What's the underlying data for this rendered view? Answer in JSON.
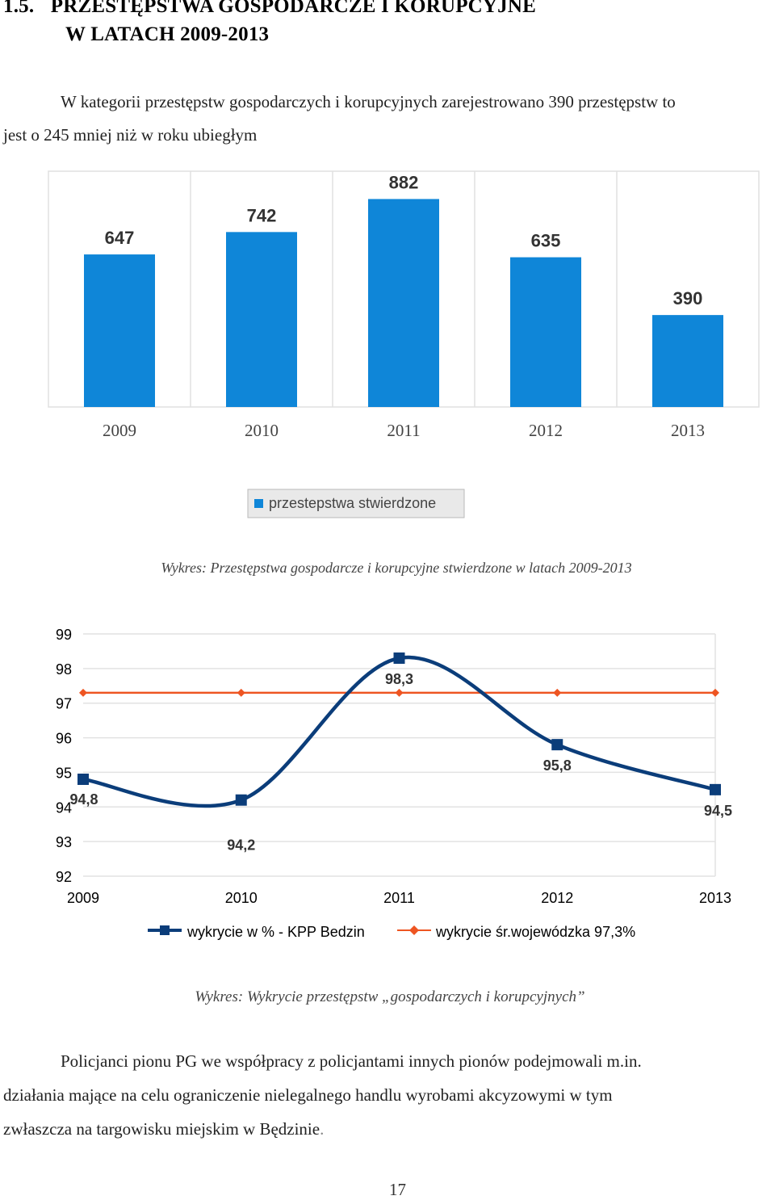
{
  "section": {
    "number": "1.5.",
    "title_line1": "PRZESTĘPSTWA GOSPODARCZE I KORUPCYJNE",
    "title_line2": "W LATACH 2009-2013"
  },
  "intro": {
    "line1": "W kategorii przestępstw gospodarczych i korupcyjnych zarejestrowano 390 przestępstw to",
    "line2": "jest  o 245 mniej niż w roku ubiegłym"
  },
  "chart_data": [
    {
      "type": "bar",
      "categories": [
        "2009",
        "2010",
        "2011",
        "2012",
        "2013"
      ],
      "series": [
        {
          "name": "przestepstwa stwierdzone",
          "values": [
            647,
            742,
            882,
            635,
            390
          ]
        }
      ],
      "data_labels": [
        "647",
        "742",
        "882",
        "635",
        "390"
      ],
      "ylim": [
        0,
        1000
      ],
      "grid": "vertical",
      "legend": "bottom-center",
      "color": "#0f86d8",
      "caption": "Wykres: Przestępstwa gospodarcze i korupcyjne stwierdzone w latach 2009-2013"
    },
    {
      "type": "line",
      "x": [
        "2009",
        "2010",
        "2011",
        "2012",
        "2013"
      ],
      "yticks": [
        "99",
        "98",
        "97",
        "96",
        "95",
        "94",
        "93",
        "92"
      ],
      "ylim": [
        92,
        99
      ],
      "grid": "horizontal",
      "legend": "bottom-center",
      "series": [
        {
          "name": "wykrycie w % - KPP Bedzin",
          "values": [
            94.8,
            94.2,
            98.3,
            95.8,
            94.5
          ],
          "labels": [
            "94,8",
            "94,2",
            "98,3",
            "95,8",
            "94,5"
          ],
          "color": "#0b3d7a",
          "marker": "square",
          "smooth": true
        },
        {
          "name": "wykrycie śr.wojewódzka 97,3%",
          "values": [
            97.3,
            97.3,
            97.3,
            97.3,
            97.3
          ],
          "color": "#ee5522",
          "marker": "diamond",
          "smooth": false
        }
      ],
      "caption": "Wykres: Wykrycie przestępstw „gospodarczych i korupcyjnych”"
    }
  ],
  "closing": {
    "line1": "Policjanci pionu PG we współpracy z policjantami innych pionów podejmowali m.in.",
    "line2": "działania mające na celu ograniczenie nielegalnego handlu wyrobami akcyzowymi w tym",
    "line3": "zwłaszcza na targowisku miejskim w Będzinie",
    "line3_end": "."
  },
  "page_number": "17"
}
